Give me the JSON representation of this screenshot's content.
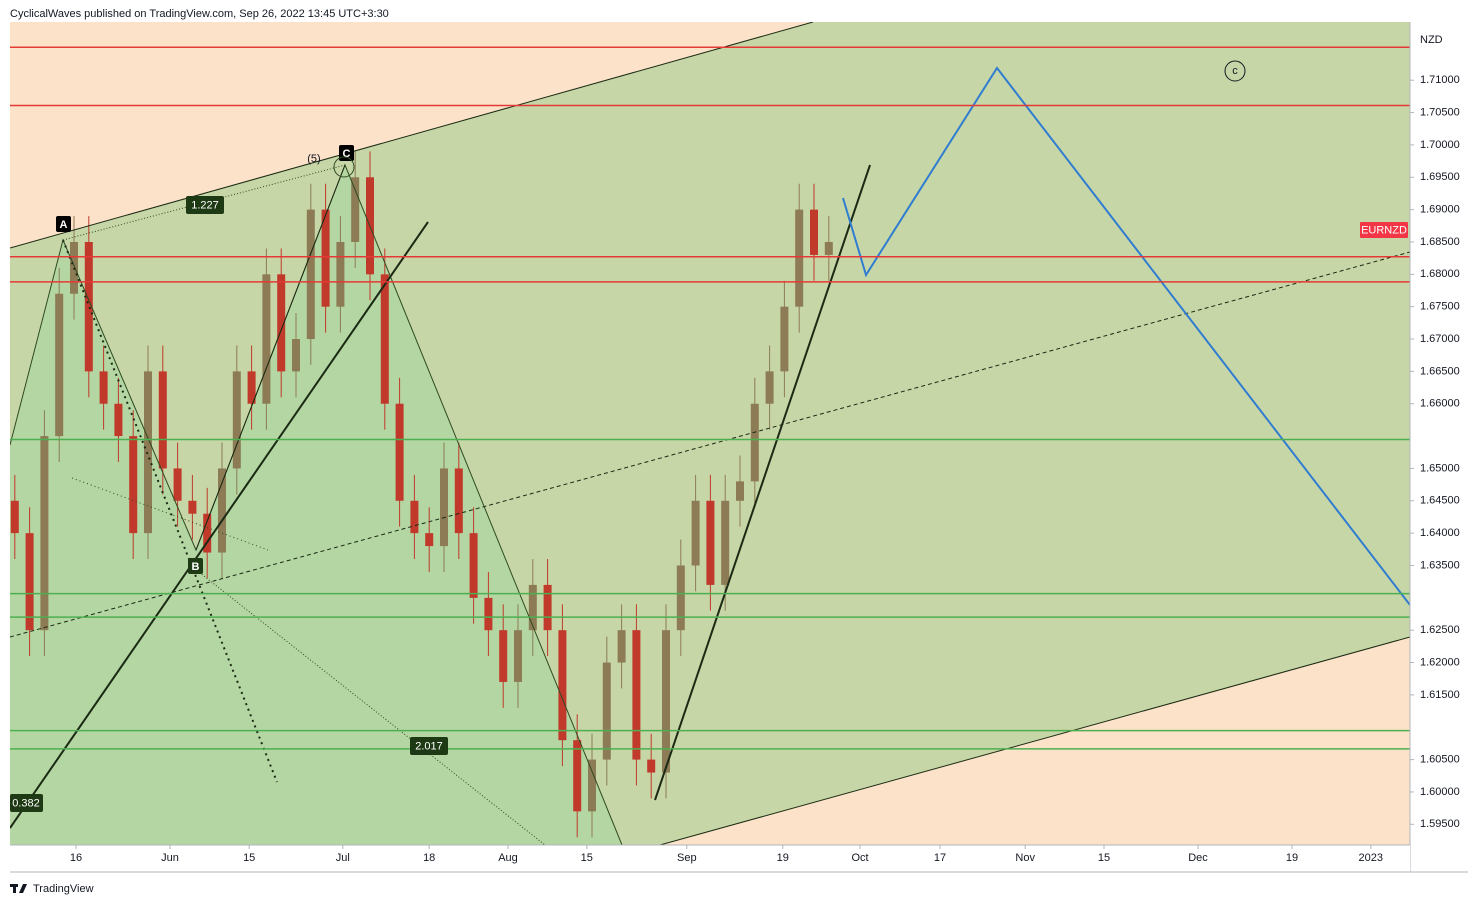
{
  "header": {
    "title": "CyclicalWaves published on TradingView.com, Sep 26, 2022 13:45 UTC+3:30"
  },
  "chart_data": {
    "type": "candlestick",
    "currency": "NZD",
    "symbol": "EURNZD",
    "x": [
      0.6,
      2.45,
      4.3,
      6.15,
      8,
      9.85,
      11.7,
      13.55,
      15.4,
      17.25,
      19.1,
      20.95,
      22.8,
      24.65,
      26.5,
      28.35,
      30.2,
      32.05,
      33.9,
      35.75,
      37.6,
      39.45,
      41.3,
      43.15,
      45,
      46.85,
      48.7,
      50.55,
      52.4,
      54.25,
      56.1,
      57.95,
      59.8,
      61.65,
      63.5,
      65.35,
      67.2,
      69.05,
      70.9,
      72.75,
      74.6,
      76.45,
      78.3,
      80.15,
      82,
      83.85,
      85.7,
      87.55,
      89.4,
      91.25,
      93.1,
      94.95,
      96.8,
      98.65,
      100.5,
      102.35
    ],
    "open": [
      1.645,
      1.64,
      1.625,
      1.655,
      1.677,
      1.685,
      1.665,
      1.66,
      1.655,
      1.64,
      1.665,
      1.65,
      1.645,
      1.643,
      1.637,
      1.65,
      1.665,
      1.66,
      1.68,
      1.665,
      1.67,
      1.69,
      1.675,
      1.685,
      1.695,
      1.68,
      1.66,
      1.645,
      1.64,
      1.638,
      1.65,
      1.64,
      1.63,
      1.625,
      1.617,
      1.625,
      1.632,
      1.625,
      1.608,
      1.597,
      1.605,
      1.62,
      1.625,
      1.605,
      1.603,
      1.625,
      1.635,
      1.645,
      1.632,
      1.645,
      1.648,
      1.66,
      1.665,
      1.675,
      1.69,
      1.683
    ],
    "high": [
      1.649,
      1.644,
      1.659,
      1.681,
      1.689,
      1.689,
      1.669,
      1.664,
      1.659,
      1.669,
      1.669,
      1.654,
      1.649,
      1.647,
      1.654,
      1.669,
      1.669,
      1.684,
      1.684,
      1.674,
      1.694,
      1.694,
      1.689,
      1.699,
      1.699,
      1.684,
      1.664,
      1.649,
      1.644,
      1.654,
      1.654,
      1.644,
      1.634,
      1.629,
      1.629,
      1.636,
      1.636,
      1.629,
      1.612,
      1.609,
      1.624,
      1.629,
      1.629,
      1.609,
      1.629,
      1.639,
      1.649,
      1.649,
      1.649,
      1.652,
      1.664,
      1.669,
      1.679,
      1.694,
      1.694,
      1.689
    ],
    "low": [
      1.636,
      1.621,
      1.621,
      1.651,
      1.673,
      1.661,
      1.656,
      1.651,
      1.636,
      1.636,
      1.646,
      1.641,
      1.639,
      1.633,
      1.633,
      1.646,
      1.656,
      1.656,
      1.661,
      1.661,
      1.666,
      1.671,
      1.671,
      1.681,
      1.676,
      1.656,
      1.641,
      1.636,
      1.634,
      1.634,
      1.636,
      1.626,
      1.621,
      1.613,
      1.613,
      1.621,
      1.621,
      1.604,
      1.593,
      1.593,
      1.601,
      1.616,
      1.601,
      1.599,
      1.599,
      1.621,
      1.631,
      1.628,
      1.628,
      1.641,
      1.644,
      1.656,
      1.661,
      1.671,
      1.679,
      1.679
    ],
    "close": [
      1.64,
      1.625,
      1.655,
      1.677,
      1.685,
      1.665,
      1.66,
      1.655,
      1.64,
      1.665,
      1.65,
      1.645,
      1.643,
      1.637,
      1.65,
      1.665,
      1.66,
      1.68,
      1.665,
      1.67,
      1.69,
      1.675,
      1.685,
      1.695,
      1.68,
      1.66,
      1.645,
      1.64,
      1.638,
      1.65,
      1.64,
      1.63,
      1.625,
      1.617,
      1.625,
      1.632,
      1.625,
      1.608,
      1.597,
      1.605,
      1.62,
      1.625,
      1.605,
      1.603,
      1.625,
      1.635,
      1.645,
      1.632,
      1.645,
      1.648,
      1.66,
      1.665,
      1.675,
      1.69,
      1.683,
      1.685
    ],
    "up_color": "#8c7b55",
    "down_color": "#c0392b",
    "xlim": [
      0,
      175
    ],
    "ylim": [
      1.5918,
      1.719
    ],
    "xticks": [
      {
        "value": 8.25,
        "label": "16"
      },
      {
        "value": 20,
        "label": "Jun"
      },
      {
        "value": 29.9,
        "label": "15"
      },
      {
        "value": 41.6,
        "label": "Jul"
      },
      {
        "value": 52.4,
        "label": "18"
      },
      {
        "value": 62.25,
        "label": "Aug"
      },
      {
        "value": 72.1,
        "label": "15"
      },
      {
        "value": 84.6,
        "label": "Sep"
      },
      {
        "value": 96.6,
        "label": "19"
      },
      {
        "value": 106.25,
        "label": "Oct"
      },
      {
        "value": 116.25,
        "label": "17"
      },
      {
        "value": 126.9,
        "label": "Nov"
      },
      {
        "value": 136.75,
        "label": "15"
      },
      {
        "value": 148.5,
        "label": "Dec"
      },
      {
        "value": 160.25,
        "label": "19"
      },
      {
        "value": 170.1,
        "label": "2023"
      }
    ],
    "yticks": [
      {
        "value": 1.71,
        "label": "1.71000"
      },
      {
        "value": 1.705,
        "label": "1.70500"
      },
      {
        "value": 1.7,
        "label": "1.70000"
      },
      {
        "value": 1.695,
        "label": "1.69500"
      },
      {
        "value": 1.69,
        "label": "1.69000"
      },
      {
        "value": 1.685,
        "label": "1.68500"
      },
      {
        "value": 1.68,
        "label": "1.68000"
      },
      {
        "value": 1.675,
        "label": "1.67500"
      },
      {
        "value": 1.67,
        "label": "1.67000"
      },
      {
        "value": 1.665,
        "label": "1.66500"
      },
      {
        "value": 1.66,
        "label": "1.66000"
      },
      {
        "value": 1.65,
        "label": "1.65000"
      },
      {
        "value": 1.645,
        "label": "1.64500"
      },
      {
        "value": 1.64,
        "label": "1.64000"
      },
      {
        "value": 1.635,
        "label": "1.63500"
      },
      {
        "value": 1.625,
        "label": "1.62500"
      },
      {
        "value": 1.62,
        "label": "1.62000"
      },
      {
        "value": 1.615,
        "label": "1.61500"
      },
      {
        "value": 1.605,
        "label": "1.60500"
      },
      {
        "value": 1.6,
        "label": "1.60000"
      },
      {
        "value": 1.595,
        "label": "1.59500"
      }
    ],
    "levels": [
      {
        "value": 1.7151,
        "color": "#e53935",
        "label_hidden": true
      },
      {
        "value": 1.70609,
        "color": "#e53935"
      },
      {
        "value": 1.68271,
        "color": "#e53935"
      },
      {
        "value": 1.67883,
        "color": "#e53935"
      },
      {
        "value": 1.65448,
        "color": "#4caf50"
      },
      {
        "value": 1.63066,
        "color": "#4caf50"
      },
      {
        "value": 1.62701,
        "color": "#4caf50"
      },
      {
        "value": 1.60947,
        "color": "#4caf50"
      },
      {
        "value": 1.60665,
        "color": "#4caf50"
      }
    ],
    "annotations": [
      "A",
      "B",
      "C",
      "(5)",
      "c",
      "1.227",
      "2.017",
      "0.382"
    ]
  },
  "footer": {
    "brand": "TradingView"
  }
}
